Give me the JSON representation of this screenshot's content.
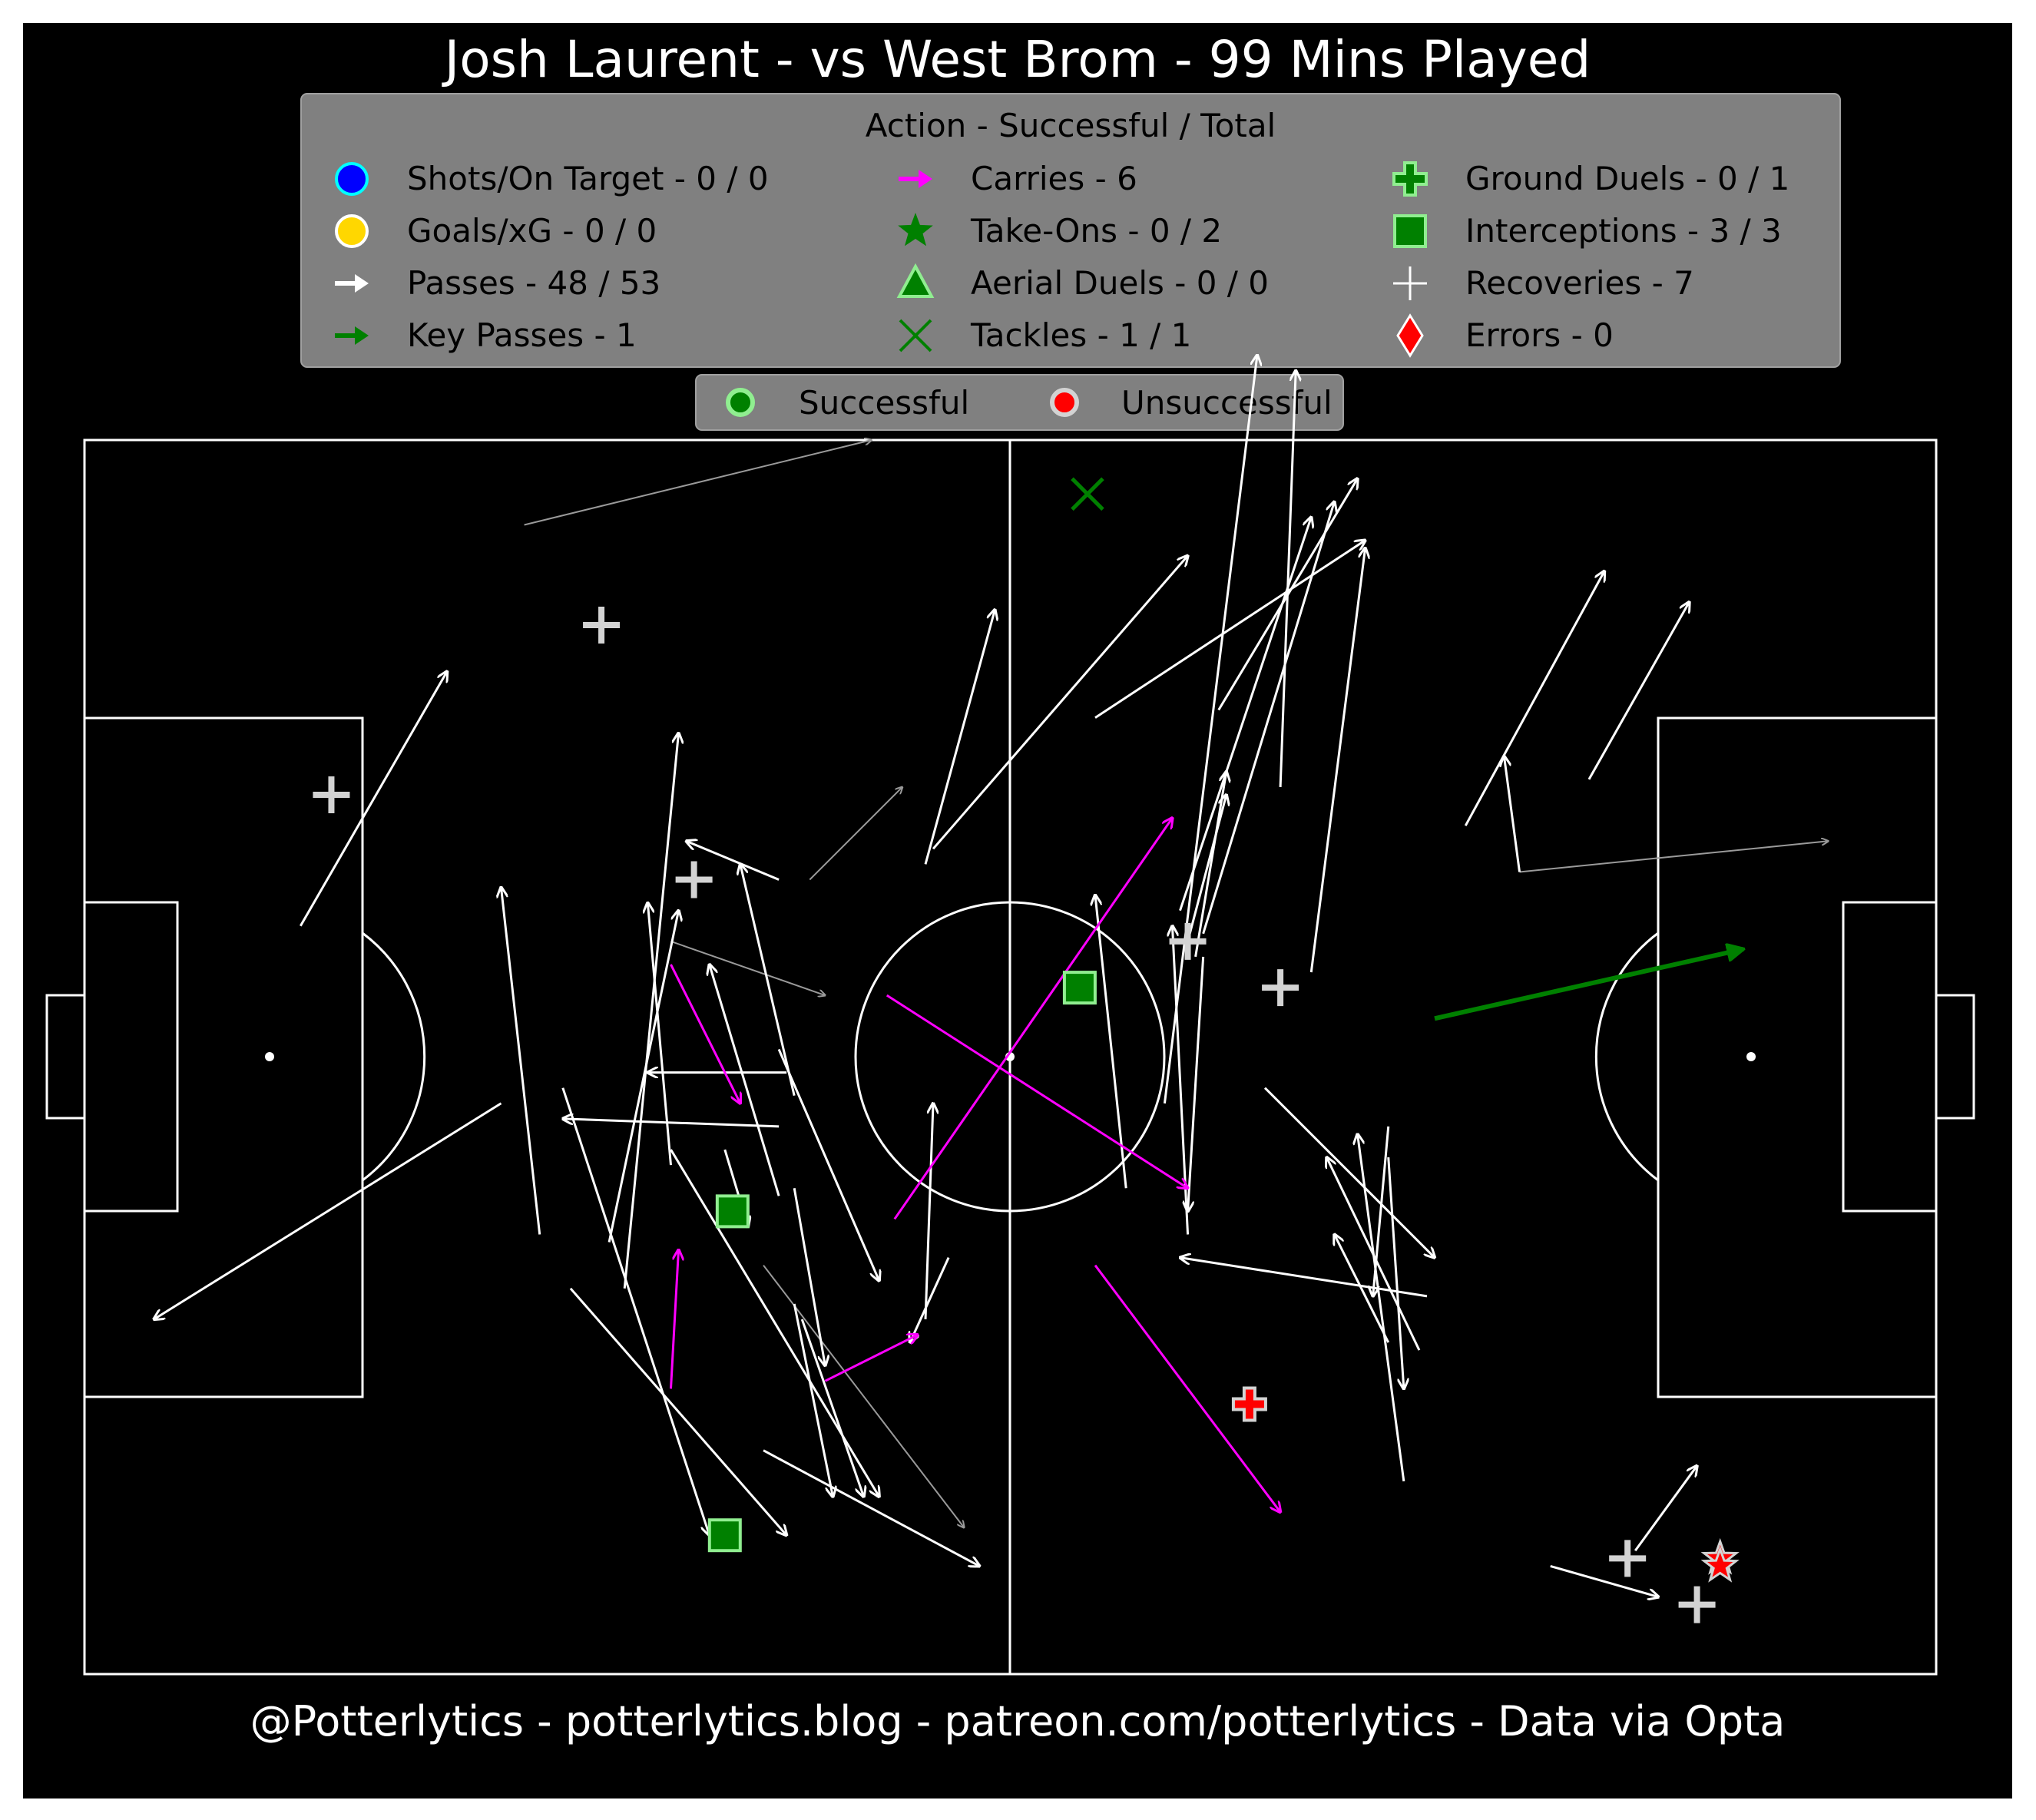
{
  "title": "Josh Laurent - vs West Brom - 99 Mins Played",
  "footer": "@Potterlytics - potterlytics.blog - patreon.com/potterlytics - Data via Opta",
  "legend": {
    "title": "Action - Successful / Total",
    "entries": [
      {
        "label": "Shots/On Target - 0 / 0",
        "icon": "circle",
        "color": "#0000ff",
        "edge": "#00ffff"
      },
      {
        "label": "Goals/xG - 0 / 0",
        "icon": "circle",
        "color": "#ffd700",
        "edge": "#ffffff"
      },
      {
        "label": "Passes - 48 / 53",
        "icon": "arrow",
        "color": "#ffffff"
      },
      {
        "label": "Key Passes - 1",
        "icon": "arrow",
        "color": "#008000"
      },
      {
        "label": "Carries - 6",
        "icon": "arrow",
        "color": "#ff00ff"
      },
      {
        "label": "Take-Ons - 0 / 2",
        "icon": "star",
        "color": "#008000"
      },
      {
        "label": "Aerial Duels - 0 / 0",
        "icon": "triangle",
        "color": "#008000",
        "edge": "#90ee90"
      },
      {
        "label": "Tackles - 1 / 1",
        "icon": "x",
        "color": "#008000"
      },
      {
        "label": "Ground Duels - 0 / 1",
        "icon": "plus-thick",
        "color": "#008000",
        "edge": "#90ee90"
      },
      {
        "label": "Interceptions - 3 / 3",
        "icon": "square",
        "color": "#008000",
        "edge": "#90ee90"
      },
      {
        "label": "Recoveries - 7",
        "icon": "plus-thin",
        "color": "#ffffff"
      },
      {
        "label": "Errors - 0",
        "icon": "diamond",
        "color": "#ff0000",
        "edge": "#ffffff"
      }
    ]
  },
  "outcome_legend": {
    "successful": "Successful",
    "unsuccessful": "Unsuccessful",
    "successful_color": "#008000",
    "unsuccessful_color": "#ff0000"
  },
  "chart_data": {
    "type": "scatter",
    "pitch": {
      "length": 120,
      "width": 80,
      "orientation": "attacking-right"
    },
    "passes": [
      {
        "x1": 56.0,
        "y1": 27.0,
        "x2": 53.5,
        "y2": 21.5,
        "outcome": "successful"
      },
      {
        "x1": 38.0,
        "y1": 47.5,
        "x2": 48.0,
        "y2": 44.0,
        "outcome": "unsuccessful"
      },
      {
        "x1": 47.0,
        "y1": 51.5,
        "x2": 53.0,
        "y2": 57.5,
        "outcome": "unsuccessful"
      },
      {
        "x1": 44.0,
        "y1": 26.5,
        "x2": 57.0,
        "y2": 9.5,
        "outcome": "unsuccessful"
      },
      {
        "x1": 28.5,
        "y1": 74.5,
        "x2": 51.0,
        "y2": 80.0,
        "outcome": "unsuccessful"
      },
      {
        "x1": 93.0,
        "y1": 52.0,
        "x2": 113.0,
        "y2": 54.0,
        "outcome": "unsuccessful"
      },
      {
        "x1": 14.0,
        "y1": 48.5,
        "x2": 23.5,
        "y2": 65.0,
        "outcome": "successful"
      },
      {
        "x1": 27.0,
        "y1": 37.0,
        "x2": 4.5,
        "y2": 23.0,
        "outcome": "successful"
      },
      {
        "x1": 29.5,
        "y1": 28.5,
        "x2": 27.0,
        "y2": 51.0,
        "outcome": "successful"
      },
      {
        "x1": 35.0,
        "y1": 25.0,
        "x2": 38.5,
        "y2": 61.0,
        "outcome": "successful"
      },
      {
        "x1": 38.0,
        "y1": 33.0,
        "x2": 36.5,
        "y2": 50.0,
        "outcome": "successful"
      },
      {
        "x1": 34.0,
        "y1": 28.0,
        "x2": 38.5,
        "y2": 49.5,
        "outcome": "successful"
      },
      {
        "x1": 45.0,
        "y1": 51.5,
        "x2": 39.0,
        "y2": 54.0,
        "outcome": "successful"
      },
      {
        "x1": 45.0,
        "y1": 31.0,
        "x2": 40.5,
        "y2": 46.0,
        "outcome": "successful"
      },
      {
        "x1": 46.0,
        "y1": 37.5,
        "x2": 42.5,
        "y2": 52.5,
        "outcome": "successful"
      },
      {
        "x1": 46.0,
        "y1": 31.5,
        "x2": 48.0,
        "y2": 20.0,
        "outcome": "successful"
      },
      {
        "x1": 54.5,
        "y1": 52.5,
        "x2": 59.0,
        "y2": 69.0,
        "outcome": "successful"
      },
      {
        "x1": 45.5,
        "y1": 39.0,
        "x2": 36.5,
        "y2": 39.0,
        "outcome": "successful"
      },
      {
        "x1": 45.0,
        "y1": 35.5,
        "x2": 31.0,
        "y2": 36.0,
        "outcome": "successful"
      },
      {
        "x1": 31.0,
        "y1": 38.0,
        "x2": 40.5,
        "y2": 9.0,
        "outcome": "successful"
      },
      {
        "x1": 31.5,
        "y1": 25.0,
        "x2": 45.5,
        "y2": 9.0,
        "outcome": "successful"
      },
      {
        "x1": 38.0,
        "y1": 34.0,
        "x2": 51.5,
        "y2": 11.5,
        "outcome": "successful"
      },
      {
        "x1": 45.0,
        "y1": 40.5,
        "x2": 51.5,
        "y2": 25.5,
        "outcome": "successful"
      },
      {
        "x1": 41.5,
        "y1": 34.0,
        "x2": 43.0,
        "y2": 29.0,
        "outcome": "successful"
      },
      {
        "x1": 46.0,
        "y1": 24.0,
        "x2": 48.5,
        "y2": 11.5,
        "outcome": "successful"
      },
      {
        "x1": 44.0,
        "y1": 14.5,
        "x2": 58.0,
        "y2": 7.0,
        "outcome": "successful"
      },
      {
        "x1": 46.5,
        "y1": 23.0,
        "x2": 50.5,
        "y2": 11.5,
        "outcome": "successful"
      },
      {
        "x1": 54.5,
        "y1": 23.0,
        "x2": 55.0,
        "y2": 37.0,
        "outcome": "successful"
      },
      {
        "x1": 55.0,
        "y1": 53.5,
        "x2": 71.5,
        "y2": 72.5,
        "outcome": "successful"
      },
      {
        "x1": 65.5,
        "y1": 62.0,
        "x2": 83.0,
        "y2": 73.5,
        "outcome": "successful"
      },
      {
        "x1": 67.5,
        "y1": 31.5,
        "x2": 65.5,
        "y2": 50.5,
        "outcome": "successful"
      },
      {
        "x1": 70.0,
        "y1": 37.0,
        "x2": 76.0,
        "y2": 85.5,
        "outcome": "successful"
      },
      {
        "x1": 71.0,
        "y1": 49.5,
        "x2": 79.5,
        "y2": 75.0,
        "outcome": "successful"
      },
      {
        "x1": 72.5,
        "y1": 46.5,
        "x2": 71.5,
        "y2": 30.0,
        "outcome": "successful"
      },
      {
        "x1": 71.5,
        "y1": 47.5,
        "x2": 74.0,
        "y2": 57.0,
        "outcome": "successful"
      },
      {
        "x1": 71.5,
        "y1": 28.5,
        "x2": 70.5,
        "y2": 48.5,
        "outcome": "successful"
      },
      {
        "x1": 72.5,
        "y1": 48.0,
        "x2": 81.0,
        "y2": 76.0,
        "outcome": "successful"
      },
      {
        "x1": 72.0,
        "y1": 46.5,
        "x2": 74.0,
        "y2": 58.5,
        "outcome": "successful"
      },
      {
        "x1": 73.5,
        "y1": 62.5,
        "x2": 82.5,
        "y2": 77.5,
        "outcome": "successful"
      },
      {
        "x1": 77.5,
        "y1": 57.5,
        "x2": 78.5,
        "y2": 84.5,
        "outcome": "successful"
      },
      {
        "x1": 79.5,
        "y1": 45.5,
        "x2": 83.0,
        "y2": 73.0,
        "outcome": "successful"
      },
      {
        "x1": 84.5,
        "y1": 33.5,
        "x2": 85.5,
        "y2": 18.5,
        "outcome": "successful"
      },
      {
        "x1": 84.5,
        "y1": 21.5,
        "x2": 81.0,
        "y2": 28.5,
        "outcome": "successful"
      },
      {
        "x1": 85.5,
        "y1": 12.5,
        "x2": 82.5,
        "y2": 35.0,
        "outcome": "successful"
      },
      {
        "x1": 76.5,
        "y1": 38.0,
        "x2": 87.5,
        "y2": 27.0,
        "outcome": "successful"
      },
      {
        "x1": 86.5,
        "y1": 21.0,
        "x2": 80.5,
        "y2": 33.5,
        "outcome": "successful"
      },
      {
        "x1": 87.0,
        "y1": 24.5,
        "x2": 71.0,
        "y2": 27.0,
        "outcome": "successful"
      },
      {
        "x1": 84.5,
        "y1": 35.5,
        "x2": 83.5,
        "y2": 24.5,
        "outcome": "successful"
      },
      {
        "x1": 89.5,
        "y1": 55.0,
        "x2": 98.5,
        "y2": 71.5,
        "outcome": "successful"
      },
      {
        "x1": 93.0,
        "y1": 52.0,
        "x2": 92.0,
        "y2": 59.5,
        "outcome": "successful"
      },
      {
        "x1": 97.5,
        "y1": 58.0,
        "x2": 104.0,
        "y2": 69.5,
        "outcome": "successful"
      },
      {
        "x1": 100.5,
        "y1": 8.0,
        "x2": 104.5,
        "y2": 13.5,
        "outcome": "successful"
      },
      {
        "x1": 95.0,
        "y1": 7.0,
        "x2": 102.0,
        "y2": 5.0,
        "outcome": "successful"
      }
    ],
    "key_passes": [
      {
        "x1": 87.5,
        "y1": 42.5,
        "x2": 107.5,
        "y2": 47.0
      }
    ],
    "carries": [
      {
        "x1": 38.0,
        "y1": 18.5,
        "x2": 38.5,
        "y2": 27.5
      },
      {
        "x1": 38.0,
        "y1": 46.0,
        "x2": 42.5,
        "y2": 37.0
      },
      {
        "x1": 48.0,
        "y1": 19.0,
        "x2": 54.0,
        "y2": 22.0
      },
      {
        "x1": 52.5,
        "y1": 29.5,
        "x2": 70.5,
        "y2": 55.5
      },
      {
        "x1": 52.0,
        "y1": 44.0,
        "x2": 71.5,
        "y2": 31.5
      },
      {
        "x1": 65.5,
        "y1": 26.5,
        "x2": 77.5,
        "y2": 10.5
      }
    ],
    "take_ons": [
      {
        "x": 106.0,
        "y": 7.5,
        "outcome": "unsuccessful"
      },
      {
        "x": 106.0,
        "y": 7.0,
        "outcome": "unsuccessful"
      }
    ],
    "tackles": [
      {
        "x": 65.0,
        "y": 76.5,
        "outcome": "successful"
      }
    ],
    "ground_duels": [
      {
        "x": 75.5,
        "y": 17.5,
        "outcome": "unsuccessful"
      }
    ],
    "interceptions": [
      {
        "x": 42.0,
        "y": 30.0,
        "outcome": "successful"
      },
      {
        "x": 64.5,
        "y": 44.5,
        "outcome": "successful"
      },
      {
        "x": 41.5,
        "y": 9.0,
        "outcome": "successful"
      }
    ],
    "recoveries": [
      {
        "x": 33.5,
        "y": 68.0
      },
      {
        "x": 16.0,
        "y": 57.0
      },
      {
        "x": 39.5,
        "y": 51.5
      },
      {
        "x": 71.5,
        "y": 47.5
      },
      {
        "x": 77.5,
        "y": 44.5
      },
      {
        "x": 100.0,
        "y": 7.5
      },
      {
        "x": 104.5,
        "y": 4.5
      }
    ]
  }
}
